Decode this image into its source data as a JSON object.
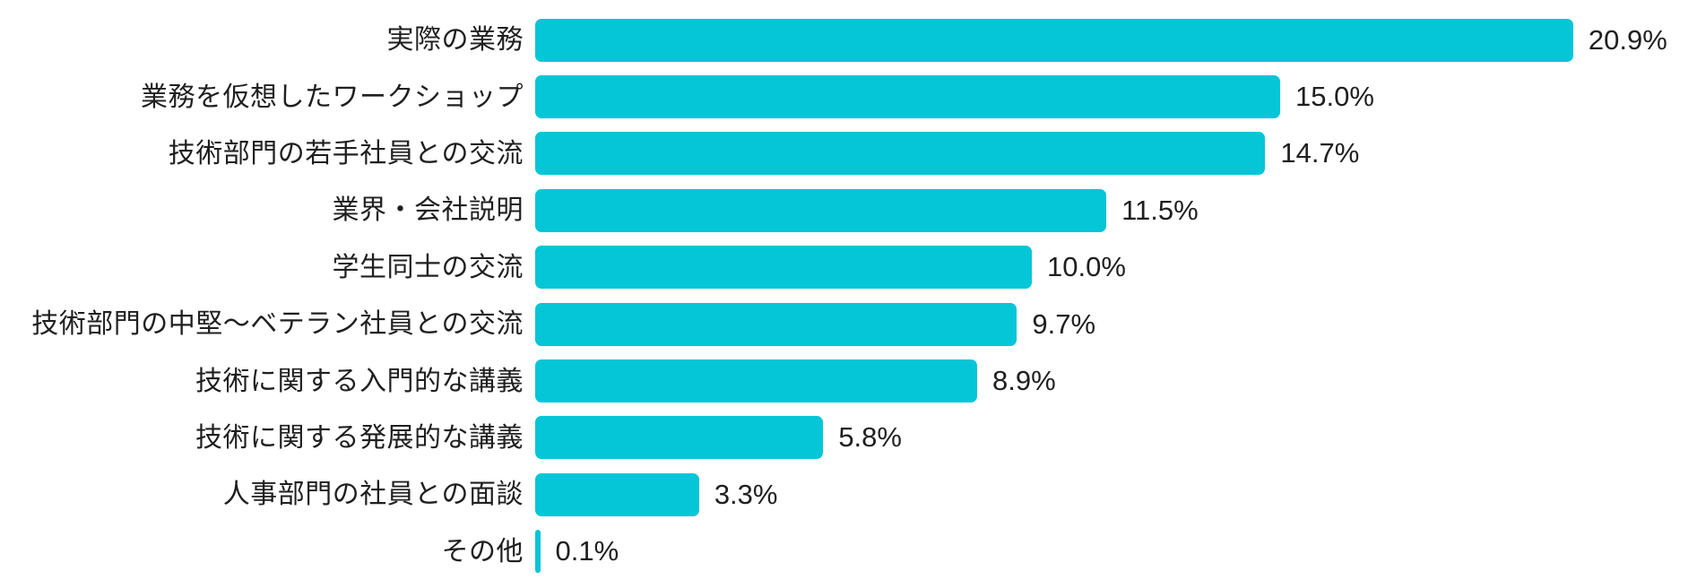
{
  "chart_data": {
    "type": "bar",
    "orientation": "horizontal",
    "title": "",
    "xlabel": "",
    "ylabel": "",
    "categories": [
      "実際の業務",
      "業務を仮想したワークショップ",
      "技術部門の若手社員との交流",
      "業界・会社説明",
      "学生同士の交流",
      "技術部門の中堅〜ベテラン社員との交流",
      "技術に関する入門的な講義",
      "技術に関する発展的な講義",
      "人事部門の社員との面談",
      "その他"
    ],
    "values": [
      20.9,
      15.0,
      14.7,
      11.5,
      10.0,
      9.7,
      8.9,
      5.8,
      3.3,
      0.1
    ],
    "value_labels": [
      "20.9%",
      "15.0%",
      "14.7%",
      "11.5%",
      "10.0%",
      "9.7%",
      "8.9%",
      "5.8%",
      "3.3%",
      "0.1%"
    ],
    "xlim": [
      0,
      21.5
    ],
    "grid": false,
    "legend": false,
    "bar_color": "#04c6d7",
    "text_color": "#1f1f1f",
    "background_color": "#ffffff"
  }
}
